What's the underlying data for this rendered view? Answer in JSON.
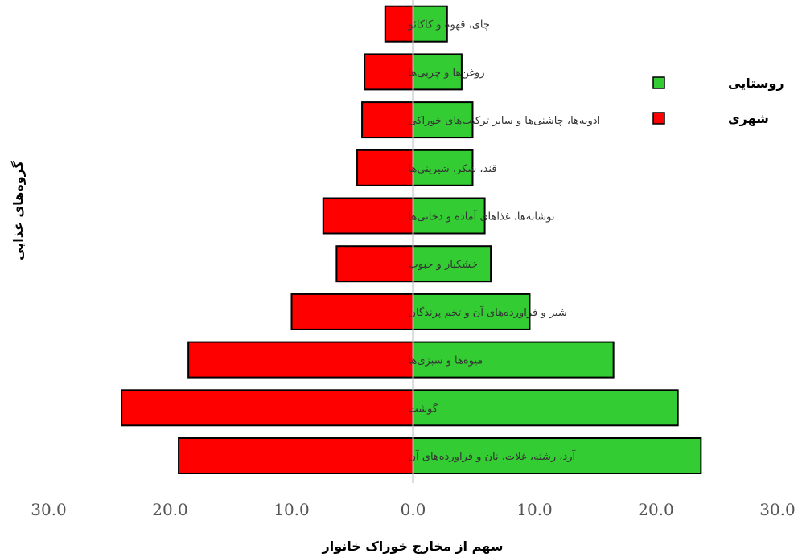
{
  "chart_data": {
    "type": "bar",
    "orientation": "horizontal-diverging",
    "categories": [
      "آرد، رشته، غلات، نان و فراورده‌های آن",
      "گوشت",
      "میوه‌ها و سبزی‌ها",
      "شیر و فراورده‌های آن و تخم پرندگان",
      "خشکبار و حبوب",
      "نوشابه‌ها، غذاهای آماده و دخانی‌ها",
      "قند، شکر، شیرینی‌ها",
      "ادویه‌ها، چاشنی‌ها و سایر ترکیب‌های خوراکی",
      "روغن‌ها و چربی‌ها",
      "چای، قهوه و کاکائو"
    ],
    "series": [
      {
        "name": "روستایی",
        "color": "#33cc33",
        "side": "right",
        "values": [
          23.7,
          21.8,
          16.5,
          9.6,
          6.4,
          5.9,
          4.9,
          4.9,
          4.0,
          2.8
        ]
      },
      {
        "name": "شهری",
        "color": "#ff0000",
        "side": "left",
        "values": [
          19.3,
          24.0,
          18.5,
          10.0,
          6.3,
          7.4,
          4.6,
          4.2,
          4.0,
          2.3
        ]
      }
    ],
    "xlabel": "سهم از مخارج خوراک خانوار",
    "ylabel": "گروه‌های غذایی",
    "xlim": [
      -30,
      30
    ],
    "xticks": [
      "30.0",
      "20.0",
      "10.0",
      "0.0",
      "10.0",
      "20.0",
      "30.0"
    ],
    "legend": "top-right",
    "grid": false
  }
}
